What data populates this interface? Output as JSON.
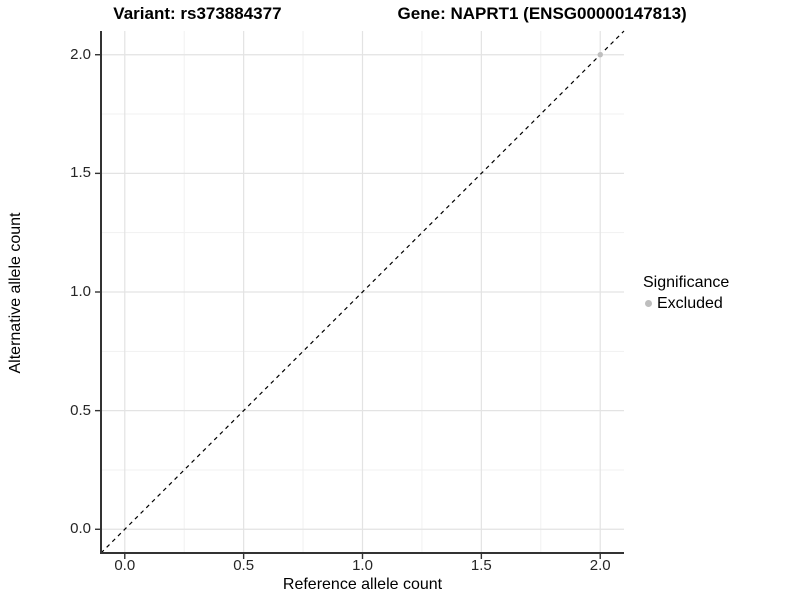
{
  "chart_data": {
    "type": "scatter",
    "title_variant": "Variant: rs373884377",
    "title_gene": "Gene: NAPRT1 (ENSG00000147813)",
    "xlabel": "Reference allele count",
    "ylabel": "Alternative allele count",
    "xlim": [
      -0.1,
      2.1
    ],
    "ylim": [
      -0.1,
      2.1
    ],
    "x_major_ticks": [
      0,
      0.5,
      1,
      1.5,
      2
    ],
    "x_tick_labels": [
      "0.0",
      "0.5",
      "1.0",
      "1.5",
      "2.0"
    ],
    "y_major_ticks": [
      0,
      0.5,
      1,
      1.5,
      2
    ],
    "y_tick_labels": [
      "0.0",
      "0.5",
      "1.0",
      "1.5",
      "2.0"
    ],
    "minor_ticks": [
      0.25,
      0.75,
      1.25,
      1.75
    ],
    "grid": "major+minor",
    "identity_line": {
      "style": "dashed",
      "x1": -0.1,
      "y1": -0.1,
      "x2": 2.1,
      "y2": 2.1
    },
    "series": [
      {
        "name": "Excluded",
        "color": "#bebebe",
        "points": [
          {
            "x": 2.0,
            "y": 2.0
          }
        ]
      }
    ],
    "legend": {
      "position": "right",
      "title": "Significance",
      "items": [
        {
          "label": "Excluded",
          "color": "#bebebe"
        }
      ]
    }
  },
  "colors": {
    "grid_major": "#e3e3e3",
    "grid_minor": "#f1f1f1",
    "axis_line": "#333333",
    "dashed_line": "#000000",
    "tick_mark": "#333333"
  }
}
